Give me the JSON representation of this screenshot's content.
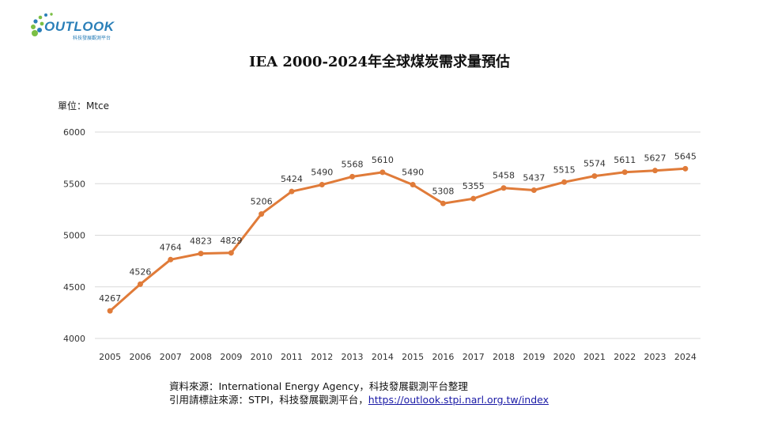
{
  "logo": {
    "brand": "OUTLOOK",
    "sub": "科技發展觀測平台"
  },
  "title": "IEA 2000-2024年全球煤炭需求量預估",
  "unit_label": "單位：Mtce",
  "source": {
    "line1": "資料來源：International Energy Agency，科技發展觀測平台整理",
    "line2_prefix": "引用請標註來源：STPI，科技發展觀測平台，",
    "line2_link": "https://outlook.stpi.narl.org.tw/index"
  },
  "colors": {
    "line": "#e07b39",
    "grid": "#d9d9d9",
    "logo": "#2a7fb8",
    "logo_dot": "#7bbf45"
  },
  "chart_data": {
    "type": "line",
    "title": "IEA 2000-2024年全球煤炭需求量預估",
    "ylabel": "單位：Mtce",
    "xlabel": "",
    "x": [
      "2005",
      "2006",
      "2007",
      "2008",
      "2009",
      "2010",
      "2011",
      "2012",
      "2013",
      "2014",
      "2015",
      "2016",
      "2017",
      "2018",
      "2019",
      "2020",
      "2021",
      "2022",
      "2023",
      "2024"
    ],
    "series": [
      {
        "values": [
          4267,
          4526,
          4764,
          4823,
          4829,
          5206,
          5424,
          5490,
          5568,
          5610,
          5490,
          5308,
          5355,
          5458,
          5437,
          5515,
          5574,
          5611,
          5627,
          5645
        ]
      }
    ],
    "ylim": [
      4000,
      6000
    ],
    "yticks": [
      4000,
      4500,
      5000,
      5500,
      6000
    ],
    "grid": true,
    "data_labels": true
  }
}
